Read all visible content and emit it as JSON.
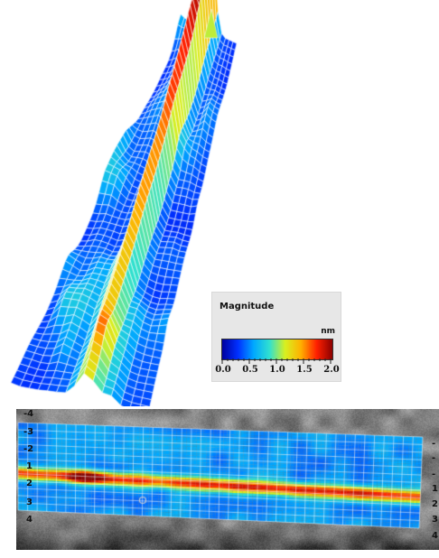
{
  "legend": {
    "title": "Magnitude",
    "unit": "nm",
    "ticks": [
      "0.0",
      "0.5",
      "1.0",
      "1.5",
      "2.0"
    ],
    "range": [
      0,
      2.0
    ],
    "colormap": [
      "#0000a0",
      "#0030ff",
      "#00a8ff",
      "#30e0d0",
      "#d8f020",
      "#ffb000",
      "#ff2000",
      "#8b0000"
    ]
  },
  "left_axis_labels": [
    "-4",
    "-3",
    "-2",
    "1",
    "2",
    "3",
    "4"
  ],
  "right_axis_labels": [
    "-",
    "-",
    "-",
    "1",
    "2",
    "3",
    "4"
  ],
  "colors": {
    "background": "#ffffff",
    "mesh_lines": "#ffffff",
    "photo_background": "#6e6e6e"
  }
}
